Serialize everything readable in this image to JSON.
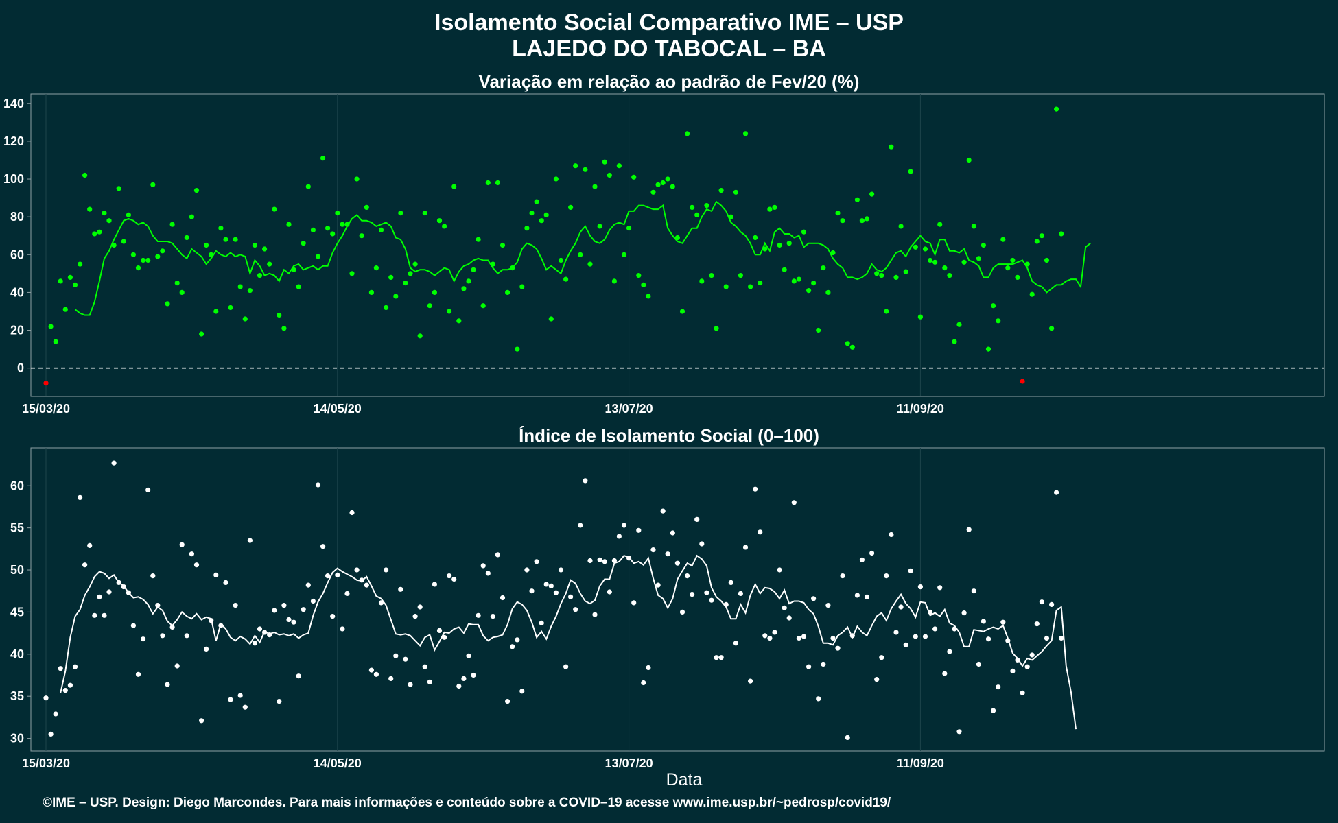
{
  "title_line1": "Isolamento Social Comparativo IME – USP",
  "title_line2": "LAJEDO DO TABOCAL – BA",
  "footer": "©IME – USP. Design: Diego Marcondes. Para mais informações e conteúdo sobre a COVID–19 acesse www.ime.usp.br/~pedrosp/covid19/",
  "colors": {
    "background": "#022b33",
    "points_top": "#00ff00",
    "points_negative": "#ff0000",
    "points_bottom": "#ffffff",
    "axes": "#8fa0a4"
  },
  "chart_data": [
    {
      "type": "scatter",
      "title": "Variação em relação ao padrão de Fev/20 (%)",
      "xlabel": "",
      "ylabel": "",
      "x_ticks": [
        "15/03/20",
        "14/05/20",
        "13/07/20",
        "11/09/20"
      ],
      "y_ticks": [
        0,
        20,
        40,
        60,
        80,
        100,
        120,
        140
      ],
      "ylim": [
        -15,
        145
      ],
      "reference_line": 0,
      "series": [
        {
          "kind": "daily_points",
          "start_date": "15/03/20",
          "values": [
            -8,
            22,
            14,
            46,
            31,
            48,
            44,
            55,
            102,
            84,
            71,
            72,
            82,
            78,
            65,
            95,
            67,
            81,
            60,
            53,
            57,
            57,
            97,
            59,
            62,
            34,
            76,
            45,
            40,
            69,
            80,
            94,
            18,
            65,
            60,
            30,
            74,
            68,
            32,
            68,
            43,
            26,
            41,
            65,
            49,
            63,
            55,
            84,
            28,
            21,
            76,
            52,
            43,
            66,
            96,
            73,
            59,
            111,
            74,
            71,
            82,
            76,
            76,
            50,
            100,
            70,
            85,
            40,
            53,
            73,
            32,
            48,
            38,
            82,
            45,
            50,
            55,
            17,
            82,
            33,
            40,
            78,
            75,
            30,
            96,
            25,
            42,
            46,
            52,
            68,
            33,
            98,
            55,
            98,
            65,
            40,
            53,
            10,
            43,
            74,
            82,
            88,
            78,
            81,
            26,
            100,
            57,
            47,
            85,
            107,
            60,
            105,
            55,
            96,
            75,
            109,
            102,
            46,
            107,
            60,
            74,
            101,
            49,
            44,
            38,
            93,
            97,
            98,
            100,
            96,
            69,
            30,
            124,
            85,
            81,
            46,
            86,
            49,
            21,
            94,
            43,
            80,
            93,
            49,
            124,
            43,
            69,
            45,
            63,
            84,
            85,
            65,
            52,
            66,
            46,
            47,
            72,
            41,
            45,
            20,
            53,
            40,
            61,
            82,
            78,
            13,
            11,
            89,
            78,
            79,
            92,
            50,
            49,
            30,
            117,
            48,
            75,
            51,
            104,
            64,
            27,
            63,
            57,
            56,
            76,
            53,
            49,
            14,
            23,
            56,
            110,
            75,
            58,
            65,
            10,
            33,
            25,
            68,
            53,
            57,
            48,
            -7,
            55,
            39,
            67,
            70,
            57,
            21,
            137,
            71
          ]
        },
        {
          "kind": "moving_average",
          "start_date": "21/03/20",
          "values": [
            31,
            29,
            28,
            28,
            35,
            46,
            58,
            62,
            68,
            73,
            78,
            79,
            78,
            76,
            77,
            75,
            70,
            67,
            67,
            67,
            66,
            63,
            60,
            58,
            63,
            61,
            59,
            55,
            58,
            62,
            60,
            59,
            61,
            59,
            60,
            59,
            50,
            57,
            54,
            49,
            50,
            49,
            46,
            52,
            50,
            54,
            55,
            52,
            53,
            54,
            52,
            54,
            54,
            61,
            66,
            70,
            75,
            79,
            81,
            78,
            78,
            77,
            75,
            76,
            77,
            75,
            69,
            68,
            63,
            53,
            51,
            52,
            52,
            51,
            49,
            51,
            53,
            52,
            46,
            51,
            54,
            55,
            57,
            58,
            57,
            57,
            53,
            50,
            52,
            52,
            53,
            56,
            63,
            66,
            65,
            63,
            58,
            52,
            54,
            52,
            50,
            57,
            62,
            66,
            72,
            75,
            70,
            67,
            66,
            68,
            73,
            76,
            77,
            76,
            83,
            83,
            86,
            86,
            85,
            84,
            84,
            86,
            74,
            70,
            67,
            66,
            70,
            74,
            74,
            80,
            84,
            83,
            88,
            86,
            83,
            77,
            75,
            72,
            70,
            66,
            60,
            60,
            66,
            62,
            72,
            74,
            71,
            71,
            69,
            70,
            64,
            66,
            66,
            66,
            65,
            63,
            58,
            55,
            53,
            48,
            48,
            47,
            48,
            50,
            55,
            52,
            51,
            53,
            57,
            61,
            62,
            59,
            64,
            67,
            70,
            67,
            66,
            60,
            68,
            68,
            62,
            62,
            61,
            63,
            57,
            56,
            54,
            48,
            48,
            53,
            55,
            55,
            55,
            55,
            56,
            57,
            53,
            46,
            44,
            43,
            40,
            42,
            44,
            44,
            46,
            47,
            47,
            43,
            64,
            66
          ]
        }
      ]
    },
    {
      "type": "scatter",
      "title": "Índice de Isolamento Social (0–100)",
      "xlabel": "Data",
      "ylabel": "",
      "x_ticks": [
        "15/03/20",
        "14/05/20",
        "13/07/20",
        "11/09/20"
      ],
      "y_ticks": [
        30,
        35,
        40,
        45,
        50,
        55,
        60
      ],
      "ylim": [
        28.5,
        64.5
      ],
      "series": [
        {
          "kind": "daily_points",
          "start_date": "15/03/20",
          "values": [
            34.8,
            30.5,
            32.9,
            38.3,
            35.7,
            36.3,
            38.5,
            58.6,
            50.6,
            52.9,
            44.6,
            46.8,
            44.6,
            47.4,
            62.7,
            48.5,
            48.0,
            47.3,
            43.4,
            37.6,
            41.8,
            59.5,
            49.3,
            45.8,
            42.2,
            36.4,
            43.2,
            38.6,
            53.0,
            42.2,
            51.9,
            50.6,
            32.1,
            40.6,
            44.0,
            49.4,
            43.4,
            48.5,
            34.6,
            45.8,
            35.1,
            33.7,
            53.5,
            41.3,
            43.0,
            42.6,
            42.3,
            45.2,
            34.4,
            45.8,
            44.1,
            43.8,
            37.4,
            45.3,
            48.2,
            46.3,
            60.1,
            52.8,
            49.3,
            44.5,
            49.4,
            43.0,
            47.2,
            56.8,
            50.0,
            48.8,
            48.2,
            38.1,
            37.6,
            46.1,
            50.0,
            37.1,
            39.8,
            47.7,
            39.4,
            36.4,
            44.5,
            45.6,
            38.5,
            36.7,
            48.3,
            42.8,
            42.0,
            49.3,
            48.9,
            36.2,
            37.1,
            39.8,
            37.5,
            44.6,
            50.5,
            49.6,
            44.5,
            51.8,
            46.7,
            34.4,
            40.9,
            41.7,
            35.6,
            50.0,
            47.5,
            51.0,
            43.7,
            48.3,
            48.1,
            47.3,
            50.0,
            38.5,
            46.8,
            45.3,
            55.3,
            60.6,
            51.1,
            44.7,
            51.2,
            51.0,
            47.4,
            51.1,
            54.0,
            55.3,
            51.4,
            46.1,
            54.7,
            36.6,
            38.4,
            52.4,
            48.2,
            57.0,
            51.9,
            54.4,
            50.8,
            45.0,
            49.3,
            47.1,
            56.0,
            53.1,
            47.3,
            46.4,
            39.6,
            39.6,
            45.9,
            48.5,
            41.3,
            47.2,
            52.7,
            36.8,
            59.6,
            54.5,
            42.2,
            41.9,
            42.6,
            50.0,
            45.5,
            44.3,
            58.0,
            41.9,
            42.1,
            38.5,
            46.6,
            34.7,
            38.8,
            45.8,
            41.9,
            40.7,
            49.3,
            30.1,
            42.2,
            47.0,
            51.2,
            46.8,
            52.0,
            37.0,
            39.6,
            49.3,
            54.2,
            42.6,
            45.6,
            41.1,
            49.9,
            42.1,
            48.0,
            42.1,
            45.0,
            43.0,
            47.9,
            37.7,
            40.3,
            43.0,
            30.8,
            44.9,
            54.8,
            47.5,
            38.8,
            43.9,
            41.8,
            33.3,
            36.1,
            43.8,
            41.6,
            38.0,
            39.3,
            35.4,
            38.5,
            39.9,
            43.6,
            46.2,
            41.9,
            45.9,
            59.2,
            41.9
          ]
        },
        {
          "kind": "moving_average",
          "start_date": "18/03/20",
          "values": [
            35.4,
            38.0,
            42.0,
            44.5,
            45.3,
            47.0,
            48.0,
            49.2,
            49.8,
            49.6,
            49.0,
            49.4,
            48.5,
            48.1,
            47.3,
            46.7,
            46.8,
            46.5,
            45.9,
            44.8,
            45.6,
            45.2,
            43.9,
            43.4,
            44.1,
            45.0,
            44.5,
            44.2,
            44.8,
            44.1,
            44.4,
            44.2,
            41.6,
            43.6,
            43.0,
            42.0,
            41.6,
            42.1,
            41.8,
            41.2,
            42.2,
            41.4,
            42.7,
            42.4,
            42.6,
            42.3,
            42.4,
            42.2,
            42.4,
            41.9,
            42.3,
            42.5,
            44.6,
            46.2,
            47.2,
            48.5,
            49.7,
            50.2,
            49.8,
            49.5,
            49.2,
            48.8,
            48.7,
            49.2,
            48.1,
            46.9,
            46.6,
            45.8,
            44.1,
            42.4,
            42.3,
            42.4,
            42.2,
            41.6,
            41.0,
            42.0,
            42.3,
            40.5,
            41.5,
            42.6,
            42.5,
            43.0,
            43.2,
            42.5,
            43.6,
            43.5,
            43.5,
            42.2,
            41.6,
            42.0,
            42.1,
            42.3,
            43.5,
            45.4,
            46.2,
            45.9,
            45.2,
            43.8,
            42.0,
            42.7,
            41.8,
            43.3,
            44.5,
            46.0,
            47.2,
            48.8,
            48.4,
            47.2,
            46.3,
            46.0,
            46.4,
            48.1,
            48.9,
            48.9,
            50.8,
            51.0,
            51.7,
            51.5,
            50.8,
            51.0,
            50.6,
            51.4,
            49.0,
            47.0,
            46.6,
            45.5,
            46.6,
            48.9,
            49.9,
            50.8,
            50.5,
            51.7,
            51.3,
            50.5,
            47.9,
            46.8,
            46.3,
            45.6,
            44.2,
            44.2,
            45.9,
            44.9,
            47.0,
            48.3,
            47.2,
            47.9,
            47.8,
            47.4,
            46.6,
            47.6,
            46.0,
            46.3,
            46.3,
            46.1,
            45.3,
            44.8,
            43.3,
            41.3,
            41.3,
            41.1,
            42.2,
            42.6,
            43.2,
            42.0,
            43.3,
            42.6,
            42.2,
            43.4,
            44.5,
            44.9,
            44.0,
            45.4,
            46.3,
            47.1,
            46.0,
            45.4,
            44.4,
            46.2,
            46.1,
            44.6,
            44.9,
            44.5,
            45.3,
            43.7,
            43.4,
            42.6,
            40.9,
            40.9,
            42.9,
            42.8,
            42.7,
            43.0,
            43.2,
            43.0,
            43.4,
            41.9,
            40.1,
            39.5,
            38.6,
            39.5,
            39.3,
            39.8,
            40.3,
            41.0,
            41.6,
            45.2,
            45.6,
            38.6,
            35.5,
            31.1
          ]
        }
      ]
    }
  ]
}
